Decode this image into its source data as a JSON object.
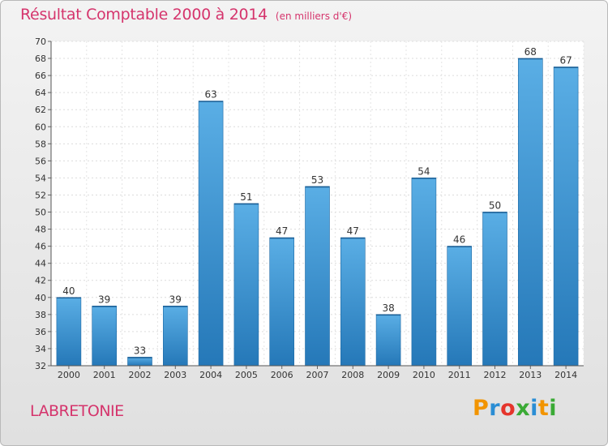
{
  "title": "Résultat Comptable 2000 à 2014",
  "subtitle": "(en milliers d'€)",
  "commune": "LABRETONIE",
  "logo": {
    "text": "Proxiti",
    "letters": [
      "P",
      "r",
      "o",
      "x",
      "i",
      "t",
      "i"
    ]
  },
  "colors": {
    "title": "#d5346c",
    "bar_top": "#5aaee5",
    "bar_bottom": "#2578b8",
    "logo": [
      "#f29400",
      "#2a8dd4",
      "#e5352c",
      "#3aaa35",
      "#2a8dd4",
      "#f29400",
      "#3aaa35"
    ]
  },
  "chart_data": {
    "type": "bar",
    "categories": [
      "2000",
      "2001",
      "2002",
      "2003",
      "2004",
      "2005",
      "2006",
      "2007",
      "2008",
      "2009",
      "2010",
      "2011",
      "2012",
      "2013",
      "2014"
    ],
    "values": [
      40,
      39,
      33,
      39,
      63,
      51,
      47,
      53,
      47,
      38,
      54,
      46,
      50,
      68,
      67
    ],
    "title": "Résultat Comptable 2000 à 2014",
    "subtitle": "(en milliers d'€)",
    "xlabel": "",
    "ylabel": "",
    "ylim": [
      32,
      70
    ],
    "yticks": [
      32,
      34,
      36,
      38,
      40,
      42,
      44,
      46,
      48,
      50,
      52,
      54,
      56,
      58,
      60,
      62,
      64,
      66,
      68,
      70
    ],
    "grid": true,
    "data_labels": true,
    "legend": "none"
  }
}
